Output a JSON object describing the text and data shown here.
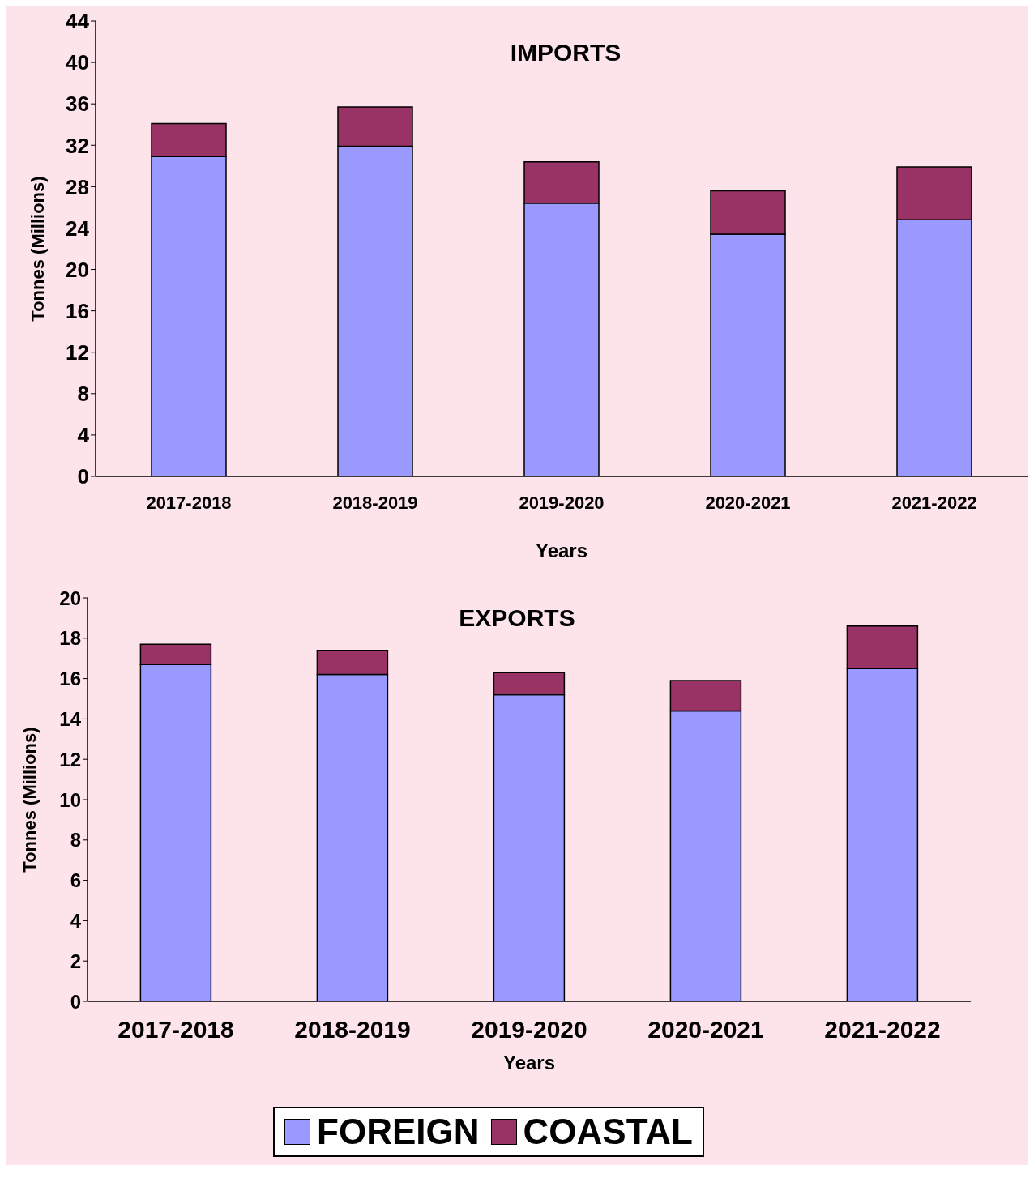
{
  "chart_data": [
    {
      "type": "bar",
      "title": "IMPORTS",
      "xlabel": "Years",
      "ylabel": "Tonnes (Millions)",
      "stacked": true,
      "categories": [
        "2017-2018",
        "2018-2019",
        "2019-2020",
        "2020-2021",
        "2021-2022"
      ],
      "series": [
        {
          "color": "#9999ff",
          "values": [
            30.9,
            31.9,
            26.4,
            23.4,
            24.8
          ]
        },
        {
          "color": "#993366",
          "values": [
            3.2,
            3.8,
            4.0,
            4.2,
            5.1
          ]
        }
      ],
      "ylim": [
        0,
        44
      ],
      "yticks": [
        0,
        4,
        8,
        12,
        16,
        20,
        24,
        28,
        32,
        36,
        40,
        44
      ],
      "grid": false,
      "legend": false
    },
    {
      "type": "bar",
      "title": "EXPORTS",
      "xlabel": "Years",
      "ylabel": "Tonnes (Millions)",
      "stacked": true,
      "categories": [
        "2017-2018",
        "2018-2019",
        "2019-2020",
        "2020-2021",
        "2021-2022"
      ],
      "series": [
        {
          "name": "FOREIGN",
          "color": "#9999ff",
          "values": [
            16.7,
            16.2,
            15.2,
            14.4,
            16.5
          ]
        },
        {
          "name": "COASTAL",
          "color": "#993366",
          "values": [
            1.0,
            1.2,
            1.1,
            1.5,
            2.1
          ]
        }
      ],
      "ylim": [
        0,
        20
      ],
      "yticks": [
        0,
        2,
        4,
        6,
        8,
        10,
        12,
        14,
        16,
        18,
        20
      ],
      "grid": false,
      "legend": "bottom"
    }
  ]
}
